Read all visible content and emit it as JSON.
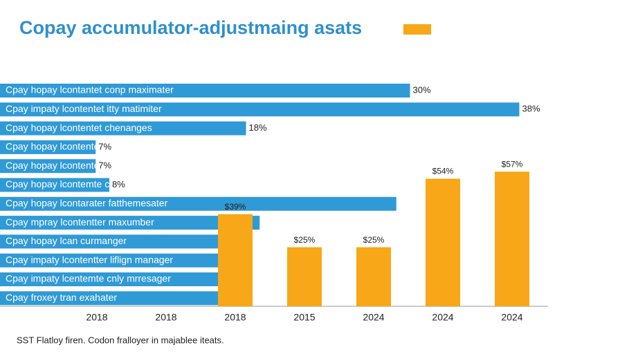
{
  "chart_data": [
    {
      "type": "barh",
      "title": "Copay accumulator-adjustmaing asats",
      "categories": [
        "Cpay hopay lcontantet conp maximater",
        "Cpay impaty lcontentet itty matimiter",
        "Cpay hopay lcontentet chenanges",
        "Cpay hopay lcontentet mathhemere",
        "Cpay hopay lcontentet lnasger",
        "Cpay hopay lcontemte chranger",
        "Cpay hopay lcontarater fatthemesater",
        "Cpay mpray lcontentter maxumber",
        "Cpay hopay lcan curmanger",
        "Cpay impaty lcontentter liflign manager",
        "Cpay impaty lcentemte cnly mrresager",
        "Cpay froxey tran exahater"
      ],
      "values": [
        30,
        38,
        18,
        7,
        7,
        8,
        29,
        19,
        16,
        16,
        16,
        16
      ],
      "value_labels": [
        "30%",
        "38%",
        "18%",
        "7%",
        "7%",
        "8%",
        null,
        null,
        null,
        null,
        null,
        null
      ],
      "color": "#2f9ad6",
      "xlim": [
        0,
        40
      ],
      "caption": "SST Flatloy firen. Codon fralloyer in majablee iteats."
    },
    {
      "type": "bar",
      "categories": [
        "2018",
        "2018",
        "2018",
        "2015",
        "2024",
        "2024",
        "2024"
      ],
      "values": [
        null,
        null,
        39,
        25,
        25,
        54,
        57
      ],
      "value_labels": [
        null,
        null,
        "$39%",
        "$25%",
        "$25%",
        "$54%",
        "$57%"
      ],
      "color": "#f7a717",
      "ylim": [
        0,
        60
      ]
    }
  ]
}
